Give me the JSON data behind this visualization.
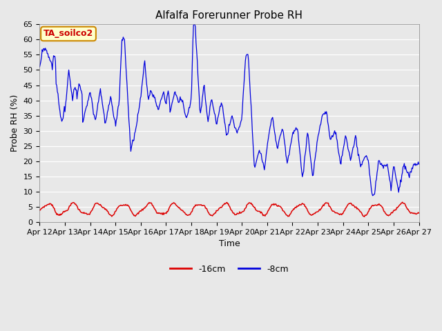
{
  "title": "Alfalfa Forerunner Probe RH",
  "xlabel": "Time",
  "ylabel": "Probe RH (%)",
  "ylim": [
    0,
    65
  ],
  "yticks": [
    0,
    5,
    10,
    15,
    20,
    25,
    30,
    35,
    40,
    45,
    50,
    55,
    60,
    65
  ],
  "bg_color": "#e8e8e8",
  "line_color_8cm": "#0000dd",
  "line_color_16cm": "#dd0000",
  "legend_label_16cm": "-16cm",
  "legend_label_8cm": "-8cm",
  "text_box_label": "TA_soilco2",
  "text_box_facecolor": "#ffffcc",
  "text_box_edgecolor": "#cc8800",
  "text_color": "#cc0000",
  "x_tick_labels": [
    "Apr 12",
    "Apr 13",
    "Apr 14",
    "Apr 15",
    "Apr 16",
    "Apr 17",
    "Apr 18",
    "Apr 19",
    "Apr 20",
    "Apr 21",
    "Apr 22",
    "Apr 23",
    "Apr 24",
    "Apr 25",
    "Apr 26",
    "Apr 27"
  ]
}
